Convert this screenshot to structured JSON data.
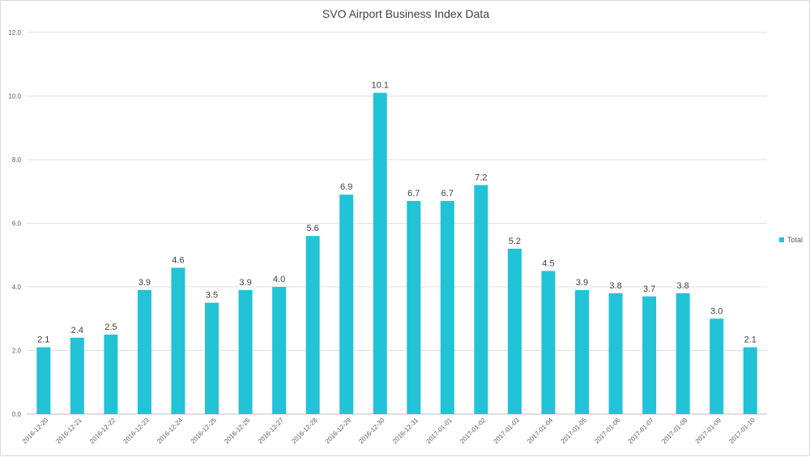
{
  "chart_data": {
    "type": "bar",
    "title": "SVO Airport Business Index Data",
    "xlabel": "",
    "ylabel": "",
    "ylim": [
      0,
      12
    ],
    "yticks": [
      "0.0",
      "2.0",
      "4.0",
      "6.0",
      "8.0",
      "10.0",
      "12.0"
    ],
    "grid": true,
    "legend_position": "right",
    "categories": [
      "2016-12-20",
      "2016-12-21",
      "2016-12-22",
      "2016-12-23",
      "2016-12-24",
      "2016-12-25",
      "2016-12-26",
      "2016-12-27",
      "2016-12-28",
      "2016-12-29",
      "2016-12-30",
      "2016-12-31",
      "2017-01-01",
      "2017-01-02",
      "2017-01-03",
      "2017-01-04",
      "2017-01-05",
      "2017-01-06",
      "2017-01-07",
      "2017-01-08",
      "2017-01-09",
      "2017-01-10"
    ],
    "series": [
      {
        "name": "Total",
        "color": "#22c3d6",
        "values": [
          2.1,
          2.4,
          2.5,
          3.9,
          4.6,
          3.5,
          3.9,
          4.0,
          5.6,
          6.9,
          10.1,
          6.7,
          6.7,
          7.2,
          5.2,
          4.5,
          3.9,
          3.8,
          3.7,
          3.8,
          3.0,
          2.1
        ],
        "labels": [
          "2.1",
          "2.4",
          "2.5",
          "3.9",
          "4.6",
          "3.5",
          "3.9",
          "4.0",
          "5.6",
          "6.9",
          "10.1",
          "6.7",
          "6.7",
          "7.2",
          "5.2",
          "4.5",
          "3.9",
          "3.8",
          "3.7",
          "3.8",
          "3.0",
          "2.1"
        ]
      }
    ]
  }
}
